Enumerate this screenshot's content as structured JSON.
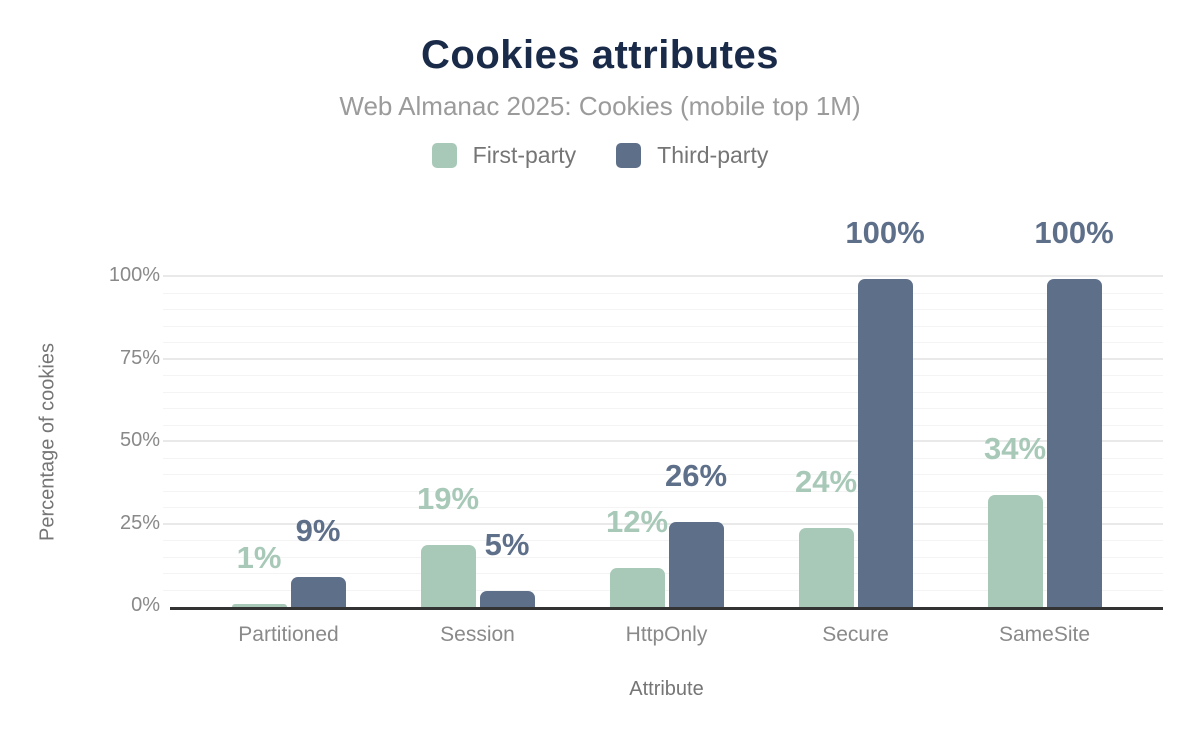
{
  "chart_data": {
    "type": "bar",
    "title": "Cookies attributes",
    "subtitle": "Web Almanac 2025: Cookies (mobile top 1M)",
    "xlabel": "Attribute",
    "ylabel": "Percentage of cookies",
    "categories": [
      "Partitioned",
      "Session",
      "HttpOnly",
      "Secure",
      "SameSite"
    ],
    "series": [
      {
        "name": "First-party",
        "color": "#a8c9b8",
        "values": [
          1,
          19,
          12,
          24,
          34
        ]
      },
      {
        "name": "Third-party",
        "color": "#5e6f8a",
        "values": [
          9,
          5,
          26,
          100,
          100
        ]
      }
    ],
    "yticks": [
      "0%",
      "25%",
      "50%",
      "75%",
      "100%"
    ],
    "ylim": [
      0,
      100
    ],
    "grid": {
      "minor_step": 5,
      "major_step": 25,
      "visible": true
    },
    "legend_position": "top",
    "value_label_format": "{v}%",
    "colors": {
      "title": "#1a2b49",
      "subtitle": "#9b9b9b",
      "axis_line": "#333333",
      "tick_text": "#898989"
    }
  }
}
